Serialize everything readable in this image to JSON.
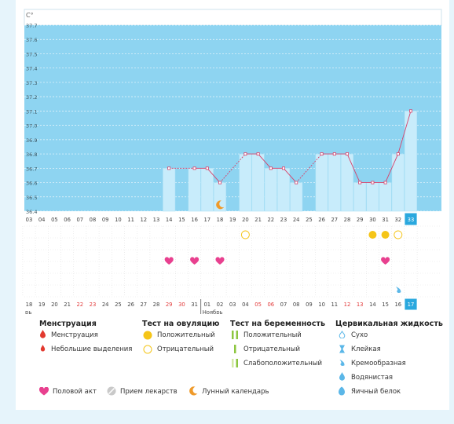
{
  "chart_data": {
    "type": "line",
    "unit_label": "C°",
    "ylim": [
      36.4,
      37.7
    ],
    "y_ticks": [
      "37.7",
      "37.6",
      "37.5",
      "37.4",
      "37.3",
      "37.2",
      "37.1",
      "37.0",
      "36.9",
      "36.8",
      "36.7",
      "36.6",
      "36.5",
      "36.4"
    ],
    "cycle_days": [
      "03",
      "04",
      "05",
      "06",
      "07",
      "08",
      "09",
      "10",
      "11",
      "12",
      "13",
      "14",
      "15",
      "16",
      "17",
      "18",
      "19",
      "20",
      "21",
      "22",
      "23",
      "24",
      "25",
      "26",
      "27",
      "28",
      "29",
      "30",
      "31",
      "32",
      "33"
    ],
    "temperature": [
      null,
      null,
      null,
      null,
      null,
      null,
      null,
      null,
      null,
      null,
      null,
      36.7,
      null,
      36.7,
      36.7,
      36.6,
      null,
      36.8,
      36.8,
      36.7,
      36.7,
      36.6,
      null,
      36.8,
      36.8,
      36.8,
      36.6,
      36.6,
      36.6,
      36.8,
      37.1
    ],
    "ovulation_test": [
      null,
      null,
      null,
      null,
      null,
      null,
      null,
      null,
      null,
      null,
      null,
      null,
      null,
      null,
      null,
      null,
      null,
      "negative",
      null,
      null,
      null,
      null,
      null,
      null,
      null,
      null,
      null,
      "positive",
      "positive",
      "negative",
      null
    ],
    "intercourse": [
      false,
      false,
      false,
      false,
      false,
      false,
      false,
      false,
      false,
      false,
      false,
      true,
      false,
      true,
      false,
      true,
      false,
      false,
      false,
      false,
      false,
      false,
      false,
      false,
      false,
      false,
      false,
      false,
      true,
      false,
      false
    ],
    "lunar": [
      false,
      false,
      false,
      false,
      false,
      false,
      false,
      false,
      false,
      false,
      false,
      false,
      false,
      false,
      false,
      true,
      false,
      false,
      false,
      false,
      false,
      false,
      false,
      false,
      false,
      false,
      false,
      false,
      false,
      false,
      false
    ],
    "cervical": [
      null,
      null,
      null,
      null,
      null,
      null,
      null,
      null,
      null,
      null,
      null,
      null,
      null,
      null,
      null,
      null,
      null,
      null,
      null,
      null,
      null,
      null,
      null,
      null,
      null,
      null,
      null,
      null,
      null,
      "creamy",
      null
    ],
    "dates": [
      "18",
      "19",
      "20",
      "21",
      "22",
      "23",
      "24",
      "25",
      "26",
      "27",
      "28",
      "29",
      "30",
      "31",
      "01",
      "02",
      "03",
      "04",
      "05",
      "06",
      "07",
      "08",
      "09",
      "10",
      "11",
      "12",
      "13",
      "14",
      "15",
      "16",
      "17"
    ],
    "date_red": [
      false,
      false,
      false,
      false,
      true,
      true,
      false,
      false,
      false,
      false,
      false,
      true,
      true,
      false,
      false,
      false,
      false,
      false,
      true,
      true,
      false,
      false,
      false,
      false,
      false,
      true,
      true,
      false,
      false,
      false,
      false
    ],
    "month_prev": "рь",
    "month_next": "Ноябрь",
    "month_next_index": 14,
    "colors": {
      "sky": "#8ed4f1",
      "bar": "#c8ecfb",
      "line": "#d8416a",
      "heart": "#e8408f",
      "yellow": "#f5c518",
      "moon": "#ef9a2a",
      "cervical": "#5bb7e8",
      "today": "#2aa8de"
    }
  },
  "legend": {
    "menstruation": {
      "title": "Менструация",
      "items": [
        "Менструация",
        "Небольшие выделения"
      ]
    },
    "ovulation": {
      "title": "Тест на овуляцию",
      "items": [
        "Положительный",
        "Отрицательный"
      ]
    },
    "pregnancy": {
      "title": "Тест на беременность",
      "items": [
        "Положительный",
        "Отрицательный",
        "Слабоположительный"
      ]
    },
    "cervical": {
      "title": "Цервикальная жидкость",
      "items": [
        "Сухо",
        "Клейкая",
        "Кремообразная",
        "Водянистая",
        "Яичный белок"
      ]
    },
    "bottom": {
      "intercourse": "Половой акт",
      "medication": "Прием лекарств",
      "lunar": "Лунный календарь"
    }
  }
}
